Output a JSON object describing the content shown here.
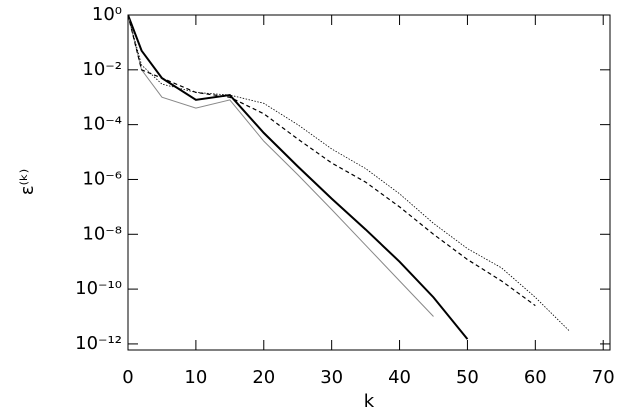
{
  "chart_data": {
    "type": "line",
    "x_label": "k",
    "y_label": "ε⁽ᵏ⁾",
    "log_y": true,
    "xlim": [
      0,
      71
    ],
    "xticks": [
      0,
      10,
      20,
      30,
      40,
      50,
      60,
      70
    ],
    "ylim": [
      6e-13,
      1
    ],
    "yticks": [
      {
        "value": 1,
        "label": "10⁰"
      },
      {
        "value": 0.01,
        "label": "10⁻²"
      },
      {
        "value": 0.0001,
        "label": "10⁻⁴"
      },
      {
        "value": 1e-06,
        "label": "10⁻⁶"
      },
      {
        "value": 1e-08,
        "label": "10⁻⁸"
      },
      {
        "value": 1e-10,
        "label": "10⁻¹⁰"
      },
      {
        "value": 1e-12,
        "label": "10⁻¹²"
      }
    ],
    "x": [
      0,
      2,
      5,
      10,
      15,
      20,
      25,
      30,
      35,
      40,
      45,
      50,
      55,
      60,
      65
    ],
    "series": [
      {
        "color": "#000000",
        "width": 2,
        "dash": "solid",
        "values": [
          1,
          0.05,
          0.005,
          0.0008,
          0.0012,
          5e-05,
          3e-06,
          2e-07,
          1.5e-08,
          1e-09,
          5e-11,
          1.5e-12,
          null,
          null,
          null
        ]
      },
      {
        "color": "#888888",
        "width": 1,
        "dash": "solid",
        "values": [
          1,
          0.01,
          0.001,
          0.0004,
          0.0008,
          2.5e-05,
          1.5e-06,
          8e-08,
          4e-09,
          2e-10,
          1e-11,
          null,
          null,
          null,
          null
        ]
      },
      {
        "color": "#000000",
        "width": 1.2,
        "dash": "dashed",
        "values": [
          1,
          0.01,
          0.005,
          0.0015,
          0.001,
          0.00025,
          3e-05,
          4e-06,
          8e-07,
          1e-07,
          1e-08,
          1.2e-09,
          2e-10,
          2.5e-11,
          null
        ]
      },
      {
        "color": "#000000",
        "width": 0.8,
        "dash": "dotted",
        "values": [
          1,
          0.015,
          0.003,
          0.0015,
          0.0012,
          0.0006,
          0.0001,
          1.3e-05,
          2.5e-06,
          3e-07,
          2.5e-08,
          3e-09,
          6e-10,
          5e-11,
          3e-12
        ]
      }
    ]
  }
}
